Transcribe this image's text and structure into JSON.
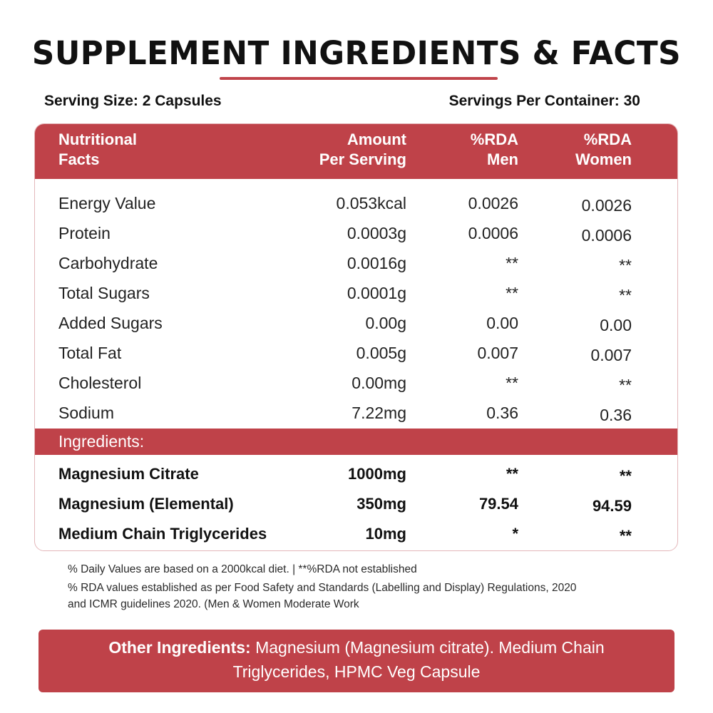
{
  "title": "SUPPLEMENT INGREDIENTS & FACTS",
  "serving_size": "Serving Size: 2 Capsules",
  "servings_per_container": "Servings Per Container: 30",
  "header": {
    "col1": [
      "Nutritional",
      "Facts"
    ],
    "col2": [
      "Amount",
      "Per Serving"
    ],
    "col3": [
      "%RDA",
      "Men"
    ],
    "col4": [
      "%RDA",
      "Women"
    ]
  },
  "nutrition_rows": [
    {
      "name": "Energy Value",
      "amount": "0.053kcal",
      "men": "0.0026",
      "women": "0.0026"
    },
    {
      "name": "Protein",
      "amount": "0.0003g",
      "men": "0.0006",
      "women": "0.0006"
    },
    {
      "name": "Carbohydrate",
      "amount": "0.0016g",
      "men": "**",
      "women": "**"
    },
    {
      "name": "Total Sugars",
      "amount": "0.0001g",
      "men": "**",
      "women": "**"
    },
    {
      "name": "Added Sugars",
      "amount": "0.00g",
      "men": "0.00",
      "women": "0.00"
    },
    {
      "name": "Total Fat",
      "amount": "0.005g",
      "men": "0.007",
      "women": "0.007"
    },
    {
      "name": "Cholesterol",
      "amount": "0.00mg",
      "men": "**",
      "women": "**"
    },
    {
      "name": "Sodium",
      "amount": "7.22mg",
      "men": "0.36",
      "women": "0.36"
    }
  ],
  "ingredients_label": "Ingredients:",
  "ingredient_rows": [
    {
      "name": "Magnesium Citrate",
      "amount": "1000mg",
      "men": "**",
      "women": "**"
    },
    {
      "name": "Magnesium (Elemental)",
      "amount": "350mg",
      "men": "79.54",
      "women": "94.59"
    },
    {
      "name": "Medium Chain Triglycerides",
      "amount": "10mg",
      "men": "*",
      "women": "**"
    }
  ],
  "footnotes": [
    "% Daily Values are based on a 2000kcal diet.  |   **%RDA not established",
    "% RDA values established as per Food Safety and Standards (Labelling and Display) Regulations, 2020",
    "and ICMR guidelines 2020. (Men & Women Moderate Work"
  ],
  "other_ingredients": {
    "label": "Other Ingredients:",
    "text": " Magnesium (Magnesium citrate). Medium Chain Triglycerides, HPMC Veg Capsule"
  },
  "colors": {
    "accent": "#bf4249",
    "border": "#e4b7ba"
  }
}
